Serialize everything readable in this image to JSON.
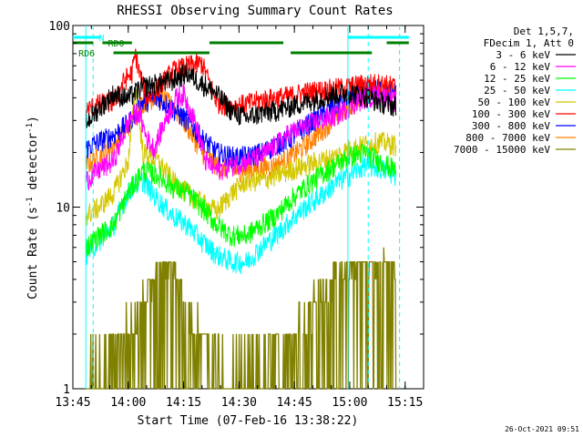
{
  "chart_data": {
    "type": "line",
    "title": "RHESSI Observing Summary Count Rates",
    "xlabel": "Start Time (07-Feb-16 13:38:22)",
    "ylabel": "Count Rate (s⁻¹ detector⁻¹)",
    "ylabel_parts": {
      "base": "Count Rate (s",
      "exp1": "-1",
      "mid": " detector",
      "exp2": "-1",
      "end": ")"
    },
    "y_scale": "log",
    "ylim": [
      1,
      100
    ],
    "xlim_minutes": [
      -15,
      80
    ],
    "x_ticks": [
      {
        "label": "13:45",
        "minutes": -15
      },
      {
        "label": "14:00",
        "minutes": 0
      },
      {
        "label": "14:15",
        "minutes": 15
      },
      {
        "label": "14:30",
        "minutes": 30
      },
      {
        "label": "14:45",
        "minutes": 45
      },
      {
        "label": "15:00",
        "minutes": 60
      },
      {
        "label": "15:15",
        "minutes": 75
      }
    ],
    "y_ticks": [
      {
        "label": "100",
        "value": 100
      },
      {
        "label": "10",
        "value": 10
      },
      {
        "label": "1",
        "value": 1
      }
    ],
    "x_range_minutes": [
      -15,
      80
    ],
    "data_start_minutes": -11.5,
    "data_end_minutes": 72.5,
    "time_unit": "minutes after 14:00",
    "legend_header": [
      "Det 1,5,7,",
      "FDecim 1, Att 0"
    ],
    "legend_placement": "right",
    "series": [
      {
        "name": "3 - 6 keV",
        "color": "#000000",
        "points": [
          [
            -11.5,
            29
          ],
          [
            -8,
            35
          ],
          [
            -4,
            42
          ],
          [
            0,
            40
          ],
          [
            4,
            46
          ],
          [
            8,
            48
          ],
          [
            12,
            50
          ],
          [
            16,
            55
          ],
          [
            20,
            48
          ],
          [
            24,
            42
          ],
          [
            28,
            34
          ],
          [
            32,
            31
          ],
          [
            36,
            33
          ],
          [
            40,
            34
          ],
          [
            44,
            36
          ],
          [
            48,
            38
          ],
          [
            52,
            40
          ],
          [
            56,
            42
          ],
          [
            60,
            43
          ],
          [
            64,
            41
          ],
          [
            68,
            38
          ],
          [
            72.5,
            36
          ]
        ]
      },
      {
        "name": "6 - 12 keV",
        "color": "#ff00ff",
        "points": [
          [
            -11.5,
            14
          ],
          [
            -8,
            16
          ],
          [
            -4,
            18
          ],
          [
            -1,
            26
          ],
          [
            1,
            32
          ],
          [
            3,
            33
          ],
          [
            5,
            24
          ],
          [
            7,
            21
          ],
          [
            10,
            30
          ],
          [
            13,
            40
          ],
          [
            15,
            42
          ],
          [
            18,
            30
          ],
          [
            21,
            18
          ],
          [
            24,
            16
          ],
          [
            28,
            17
          ],
          [
            32,
            18
          ],
          [
            36,
            19
          ],
          [
            40,
            22
          ],
          [
            44,
            26
          ],
          [
            48,
            28
          ],
          [
            52,
            30
          ],
          [
            56,
            32
          ],
          [
            60,
            36
          ],
          [
            64,
            40
          ],
          [
            68,
            42
          ],
          [
            72.5,
            38
          ]
        ]
      },
      {
        "name": "12 - 25 keV",
        "color": "#00ff00",
        "points": [
          [
            -11.5,
            6
          ],
          [
            -8,
            7
          ],
          [
            -4,
            8
          ],
          [
            0,
            12
          ],
          [
            4,
            16
          ],
          [
            8,
            15
          ],
          [
            12,
            13
          ],
          [
            16,
            12
          ],
          [
            20,
            10
          ],
          [
            24,
            8
          ],
          [
            28,
            7
          ],
          [
            32,
            7
          ],
          [
            36,
            8
          ],
          [
            40,
            9
          ],
          [
            44,
            11
          ],
          [
            48,
            13
          ],
          [
            52,
            15
          ],
          [
            56,
            17
          ],
          [
            60,
            19
          ],
          [
            64,
            20
          ],
          [
            68,
            18
          ],
          [
            72.5,
            16
          ]
        ]
      },
      {
        "name": "25 - 50 keV",
        "color": "#00ffff",
        "points": [
          [
            -11.5,
            5.5
          ],
          [
            -8,
            6.5
          ],
          [
            -4,
            8
          ],
          [
            -1,
            11
          ],
          [
            1,
            13
          ],
          [
            4,
            14
          ],
          [
            8,
            11
          ],
          [
            12,
            9
          ],
          [
            16,
            8
          ],
          [
            20,
            6.5
          ],
          [
            24,
            5.5
          ],
          [
            28,
            5
          ],
          [
            32,
            5
          ],
          [
            36,
            6
          ],
          [
            40,
            7
          ],
          [
            44,
            8.5
          ],
          [
            48,
            10
          ],
          [
            52,
            11.5
          ],
          [
            56,
            13.5
          ],
          [
            60,
            15
          ],
          [
            64,
            17
          ],
          [
            68,
            16.5
          ],
          [
            72.5,
            15
          ]
        ]
      },
      {
        "name": "50 - 100 keV",
        "color": "#d4c800",
        "points": [
          [
            -11.5,
            9
          ],
          [
            -8,
            10
          ],
          [
            -4,
            12
          ],
          [
            0,
            18
          ],
          [
            2,
            45
          ],
          [
            4,
            20
          ],
          [
            8,
            18
          ],
          [
            12,
            14
          ],
          [
            16,
            12
          ],
          [
            20,
            10.5
          ],
          [
            24,
            9.5
          ],
          [
            28,
            12
          ],
          [
            32,
            14
          ],
          [
            36,
            14
          ],
          [
            40,
            15
          ],
          [
            44,
            16
          ],
          [
            48,
            17
          ],
          [
            52,
            18
          ],
          [
            56,
            19
          ],
          [
            60,
            21
          ],
          [
            64,
            22
          ],
          [
            68,
            23
          ],
          [
            72.5,
            22
          ]
        ]
      },
      {
        "name": "100 - 300 keV",
        "color": "#ff0000",
        "points": [
          [
            -11.5,
            34
          ],
          [
            -8,
            37
          ],
          [
            -4,
            38
          ],
          [
            -1,
            50
          ],
          [
            1,
            55
          ],
          [
            2,
            70
          ],
          [
            3,
            55
          ],
          [
            5,
            40
          ],
          [
            8,
            45
          ],
          [
            12,
            56
          ],
          [
            16,
            60
          ],
          [
            20,
            62
          ],
          [
            24,
            38
          ],
          [
            28,
            36
          ],
          [
            32,
            37
          ],
          [
            36,
            39
          ],
          [
            40,
            40
          ],
          [
            44,
            41
          ],
          [
            48,
            43
          ],
          [
            52,
            44
          ],
          [
            56,
            45
          ],
          [
            60,
            46
          ],
          [
            64,
            48
          ],
          [
            68,
            48
          ],
          [
            72.5,
            46
          ]
        ]
      },
      {
        "name": "300 - 800 keV",
        "color": "#0000ff",
        "points": [
          [
            -11.5,
            21
          ],
          [
            -8,
            23
          ],
          [
            -4,
            25
          ],
          [
            0,
            29
          ],
          [
            4,
            38
          ],
          [
            8,
            40
          ],
          [
            12,
            35
          ],
          [
            16,
            30
          ],
          [
            20,
            24
          ],
          [
            24,
            20
          ],
          [
            28,
            19
          ],
          [
            32,
            19
          ],
          [
            36,
            20
          ],
          [
            40,
            22
          ],
          [
            44,
            24
          ],
          [
            48,
            28
          ],
          [
            52,
            32
          ],
          [
            56,
            36
          ],
          [
            60,
            40
          ],
          [
            64,
            44
          ],
          [
            68,
            45
          ],
          [
            72.5,
            43
          ]
        ]
      },
      {
        "name": "800 - 7000 keV",
        "color": "#ff8000",
        "points": [
          [
            -11.5,
            17
          ],
          [
            -8,
            19
          ],
          [
            -4,
            22
          ],
          [
            0,
            28
          ],
          [
            4,
            38
          ],
          [
            8,
            41
          ],
          [
            12,
            36
          ],
          [
            16,
            28
          ],
          [
            20,
            20
          ],
          [
            24,
            17
          ],
          [
            28,
            16
          ],
          [
            32,
            16
          ],
          [
            36,
            16.5
          ],
          [
            40,
            17
          ],
          [
            44,
            19
          ],
          [
            48,
            22
          ],
          [
            52,
            26
          ],
          [
            56,
            31
          ],
          [
            60,
            36
          ],
          [
            64,
            42
          ],
          [
            68,
            45
          ],
          [
            72.5,
            43
          ]
        ]
      },
      {
        "name": "7000 - 15000 keV",
        "color": "#808000",
        "points": [
          [
            -11.5,
            1.1
          ],
          [
            -8,
            1.3
          ],
          [
            -4,
            1.6
          ],
          [
            0,
            2
          ],
          [
            4,
            3.2
          ],
          [
            8,
            4.8
          ],
          [
            12,
            4.5
          ],
          [
            16,
            3
          ],
          [
            20,
            2
          ],
          [
            24,
            1.6
          ],
          [
            28,
            1.3
          ],
          [
            32,
            1.2
          ],
          [
            36,
            1.3
          ],
          [
            40,
            1.6
          ],
          [
            44,
            2
          ],
          [
            48,
            2.6
          ],
          [
            52,
            3.4
          ],
          [
            56,
            4.2
          ],
          [
            60,
            4.8
          ],
          [
            64,
            5
          ],
          [
            68,
            5
          ],
          [
            72.5,
            4.8
          ]
        ]
      }
    ],
    "dashed_vertical_lines_minutes": [
      -9.5,
      65,
      73.5
    ],
    "cyan_solid_vertical_lines_minutes": [
      -11.5,
      59.5
    ],
    "status_bars": [
      {
        "label": "N",
        "color": "#00ffff",
        "segments": [
          [
            -15,
            -7.5
          ],
          [
            59.5,
            76
          ]
        ]
      },
      {
        "label": "RD0",
        "color": "#008000",
        "segments": [
          [
            -15,
            -9.5
          ],
          [
            -7,
            1
          ],
          [
            22,
            42
          ],
          [
            70,
            76
          ]
        ]
      },
      {
        "label": "RD6",
        "color": "#008000",
        "segments": [
          [
            -4,
            22
          ],
          [
            44,
            66
          ]
        ]
      }
    ],
    "grid": false
  },
  "footer": {
    "timestamp": "26-Oct-2021 09:51"
  }
}
